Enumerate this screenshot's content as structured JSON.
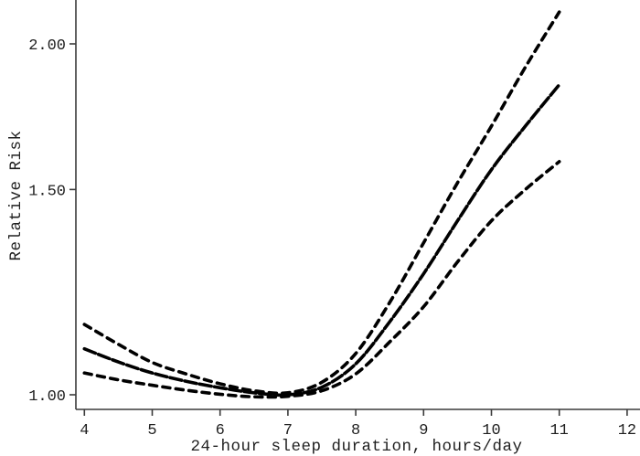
{
  "figure": {
    "background": "#ffffff",
    "curve_color": "#000000",
    "axis_color": "#3a3a3a",
    "text_color": "#1f1f1f"
  },
  "chart_data": {
    "type": "line",
    "title": "",
    "xlabel": "24-hour sleep duration, hours/day",
    "ylabel": "Relative Risk",
    "x_axis": {
      "ticks": [
        4,
        5,
        6,
        7,
        8,
        9,
        10,
        11,
        12
      ],
      "range_shown": [
        4,
        12.2
      ]
    },
    "y_axis": {
      "scale": "log10",
      "ticks": [
        {
          "value": 1.0,
          "label": "1.00"
        },
        {
          "value": 1.5,
          "label": "1.50"
        },
        {
          "value": 2.0,
          "label": "2.00"
        }
      ],
      "range_shown_rr": [
        0.99,
        2.18
      ]
    },
    "legend": "none",
    "grid": "off",
    "x": [
      4,
      4.5,
      5,
      5.5,
      6,
      6.5,
      7,
      7.5,
      8,
      8.5,
      9,
      9.5,
      10,
      10.5,
      11
    ],
    "series": [
      {
        "name": "upper-confidence-limit",
        "style": "dashed",
        "values": [
          1.149,
          1.105,
          1.066,
          1.042,
          1.022,
          1.008,
          1.004,
          1.025,
          1.085,
          1.2,
          1.35,
          1.52,
          1.7,
          1.91,
          2.13
        ]
      },
      {
        "name": "point-estimate",
        "style": "long-dash",
        "values": [
          1.095,
          1.067,
          1.044,
          1.027,
          1.014,
          1.004,
          1.0,
          1.015,
          1.063,
          1.155,
          1.27,
          1.41,
          1.56,
          1.7,
          1.845
        ]
      },
      {
        "name": "lower-confidence-limit",
        "style": "dashed",
        "values": [
          1.044,
          1.03,
          1.019,
          1.009,
          1.001,
          0.996,
          0.997,
          1.008,
          1.042,
          1.11,
          1.19,
          1.3,
          1.41,
          1.5,
          1.585
        ]
      }
    ]
  }
}
